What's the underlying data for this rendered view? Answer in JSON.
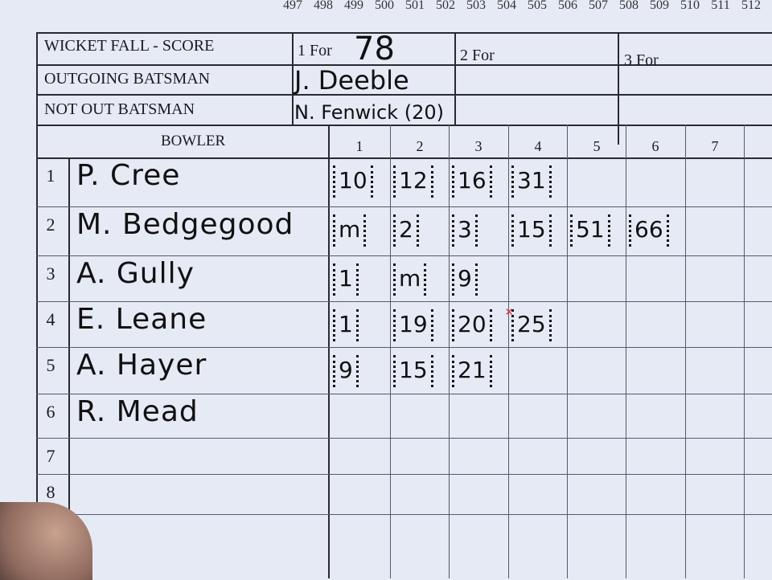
{
  "top_numbers": [
    "497",
    "498",
    "499",
    "500",
    "501",
    "502",
    "503",
    "504",
    "505",
    "506",
    "507",
    "508",
    "509",
    "510",
    "511",
    "512"
  ],
  "wicket_table": {
    "row_labels": [
      "WICKET FALL - SCORE",
      "OUTGOING BATSMAN",
      "NOT OUT BATSMAN"
    ],
    "wickets": [
      {
        "label": "1 For",
        "score": "78",
        "outgoing": "J. Deeble",
        "not_out": "N. Fenwick (20)"
      },
      {
        "label": "2 For",
        "score": "",
        "outgoing": "",
        "not_out": ""
      },
      {
        "label": "3 For",
        "score": "",
        "outgoing": "",
        "not_out": ""
      }
    ]
  },
  "bowling": {
    "header": "BOWLER",
    "over_numbers": [
      "1",
      "2",
      "3",
      "4",
      "5",
      "6",
      "7"
    ],
    "rows": [
      {
        "num": "1",
        "name": "P. Cree",
        "overs": [
          "10",
          "12",
          "16",
          "31"
        ]
      },
      {
        "num": "2",
        "name": "M. Bedgegood",
        "overs": [
          "m",
          "2",
          "3",
          "15",
          "51",
          "66"
        ]
      },
      {
        "num": "3",
        "name": "A. Gully",
        "overs": [
          "1",
          "m",
          "9"
        ]
      },
      {
        "num": "4",
        "name": "E. Leane",
        "overs": [
          "1",
          "19",
          "20",
          "25"
        ]
      },
      {
        "num": "5",
        "name": "A. Hayer",
        "overs": [
          "9",
          "15",
          "21"
        ]
      },
      {
        "num": "6",
        "name": "R. Mead",
        "overs": []
      },
      {
        "num": "7",
        "name": "",
        "overs": []
      },
      {
        "num": "8",
        "name": "",
        "overs": []
      }
    ]
  },
  "colors": {
    "paper": "#e6eaf5",
    "ink": "#111111",
    "wicket_mark": "#d8262b"
  }
}
